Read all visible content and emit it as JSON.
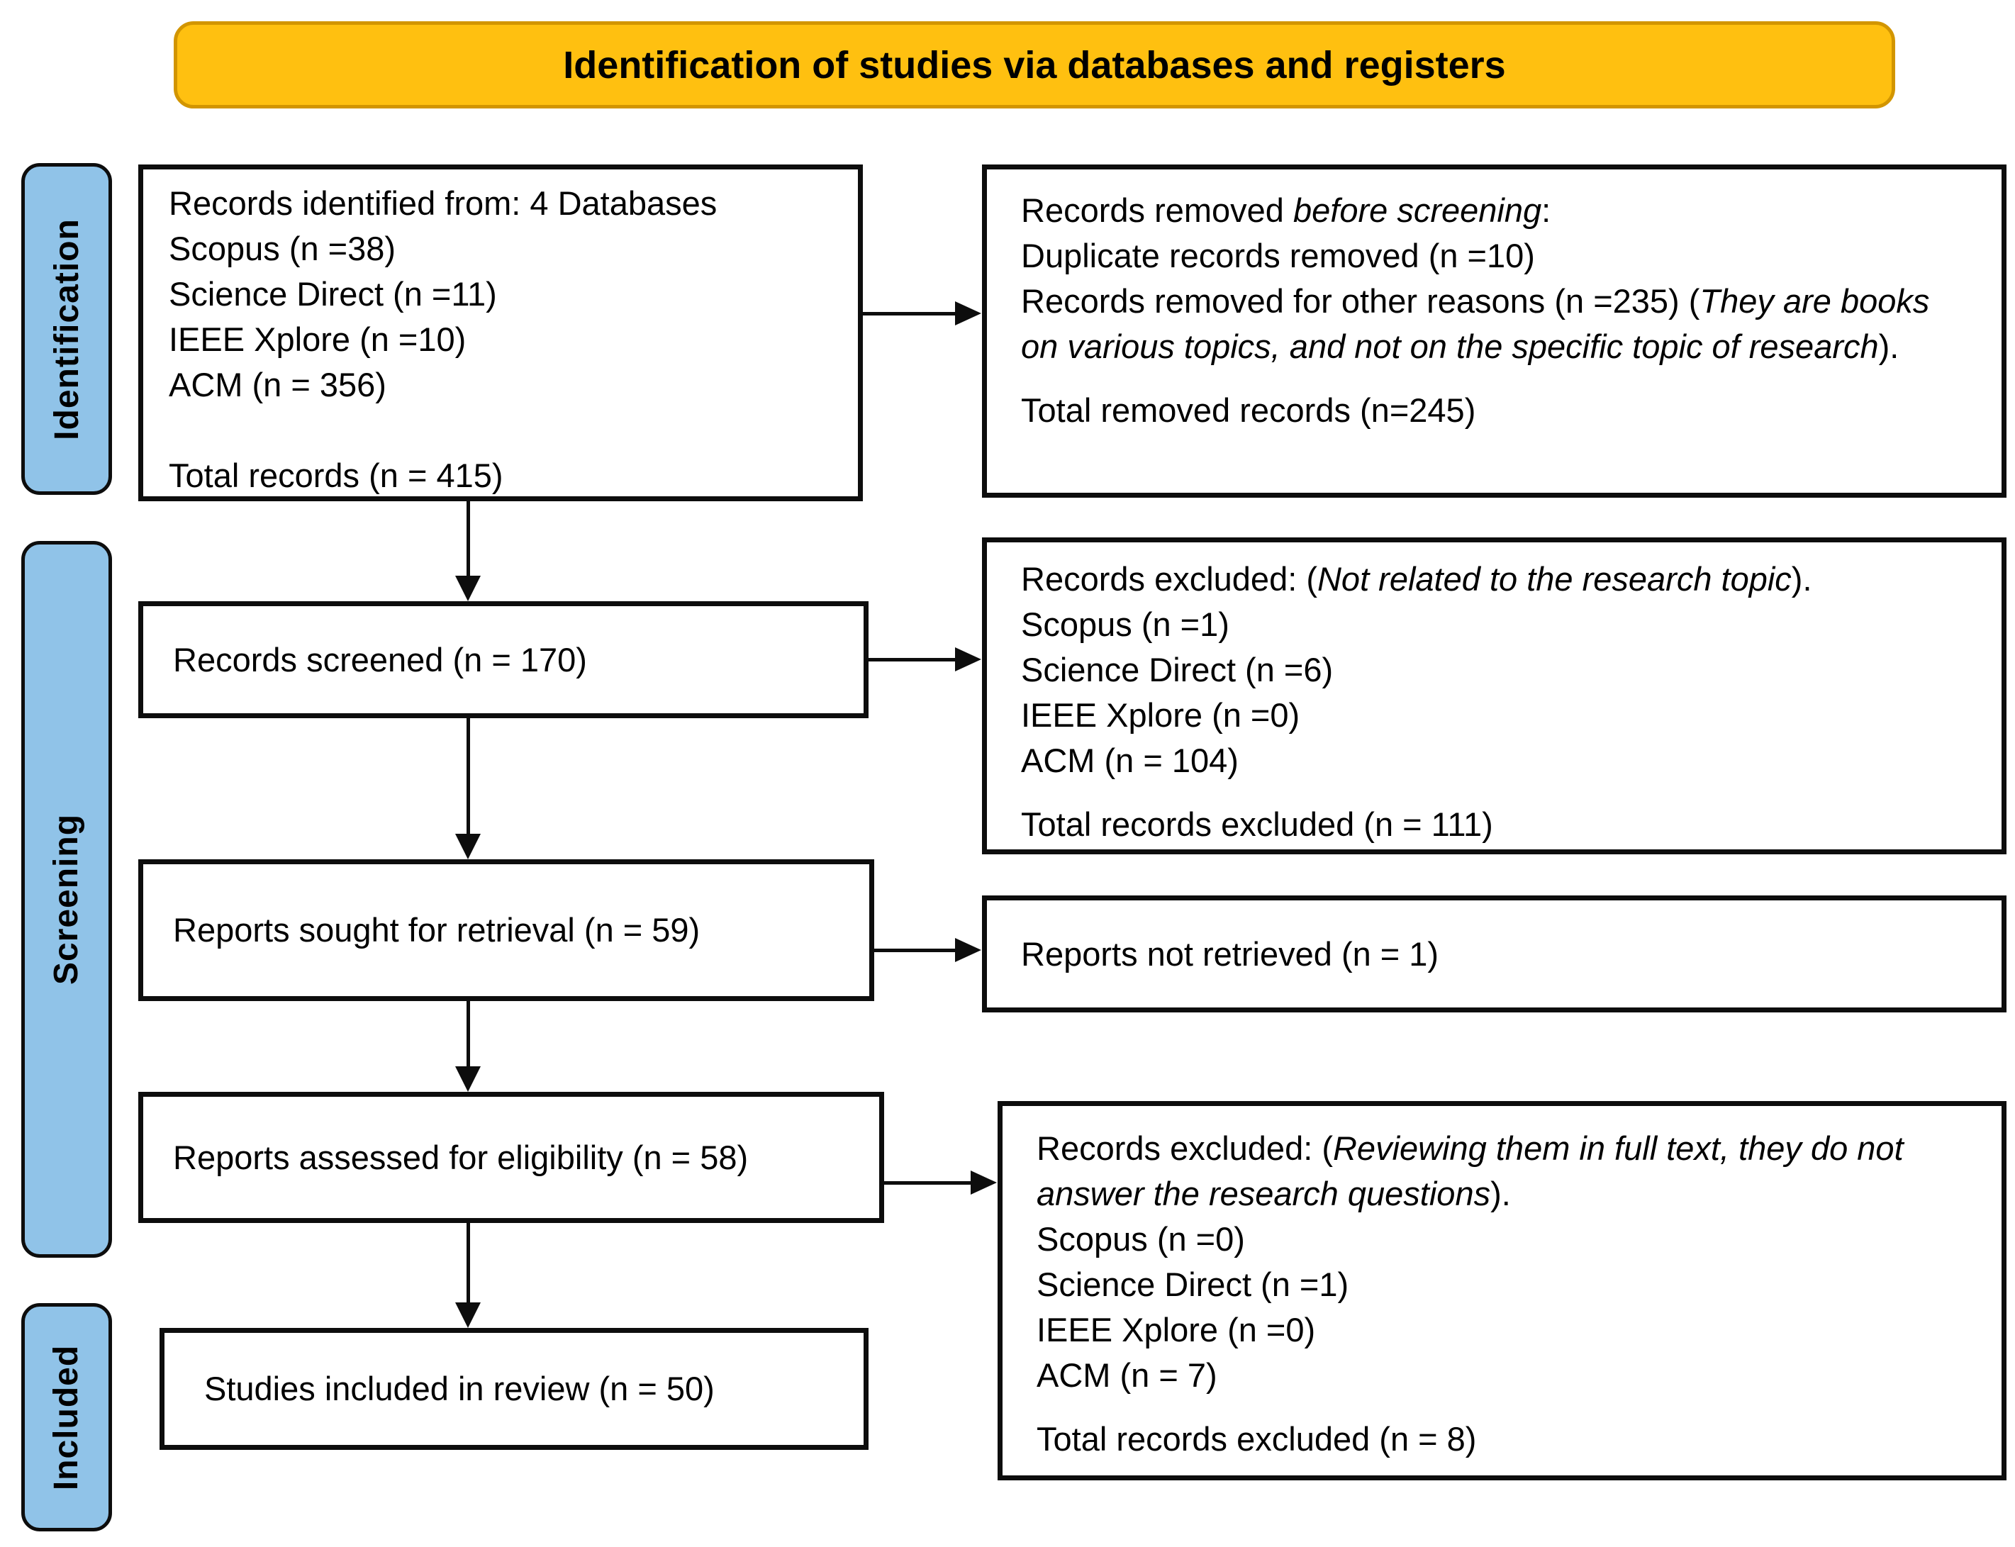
{
  "banner": {
    "label": "Identification of studies via databases and registers"
  },
  "stage_labels": [
    {
      "label": "Identification"
    },
    {
      "label": "Screening"
    },
    {
      "label": "Included"
    }
  ],
  "colors": {
    "banner_fill": "#FFC010",
    "banner_border": "#D29500",
    "stage_fill": "#90C3E8",
    "line": "#0D0D0D",
    "box_fill": "#FFFFFF"
  },
  "boxes": {
    "records_identified": {
      "lines": [
        {
          "runs": [
            {
              "t": "Records identified from: 4 Databases"
            }
          ]
        },
        {
          "runs": [
            {
              "t": "Scopus (n =38)"
            }
          ]
        },
        {
          "runs": [
            {
              "t": "Science Direct (n =11)"
            }
          ]
        },
        {
          "runs": [
            {
              "t": "IEEE Xplore (n =10)"
            }
          ]
        },
        {
          "runs": [
            {
              "t": "ACM (n = 356)"
            }
          ]
        },
        {
          "runs": []
        },
        {
          "runs": [
            {
              "t": "Total records (n = 415)"
            }
          ]
        }
      ]
    },
    "records_removed": {
      "lines": [
        {
          "runs": [
            {
              "t": "Records removed "
            },
            {
              "t": "before screening",
              "i": true
            },
            {
              "t": ":"
            }
          ]
        },
        {
          "runs": [
            {
              "t": "Duplicate records removed (n =10)"
            }
          ]
        },
        {
          "runs": [
            {
              "t": "Records removed for other reasons (n =235) ("
            },
            {
              "t": "They are books on various topics, and not on the specific topic of research",
              "i": true
            },
            {
              "t": ")."
            }
          ]
        },
        {
          "gap": true,
          "runs": [
            {
              "t": "Total removed records (n=245)"
            }
          ]
        }
      ]
    },
    "records_screened": {
      "lines": [
        {
          "runs": [
            {
              "t": "Records screened (n = 170)"
            }
          ]
        }
      ]
    },
    "records_excluded_screening": {
      "lines": [
        {
          "runs": [
            {
              "t": "Records excluded: ("
            },
            {
              "t": "Not related to the research topic",
              "i": true
            },
            {
              "t": ")."
            }
          ]
        },
        {
          "runs": [
            {
              "t": "Scopus (n =1)"
            }
          ]
        },
        {
          "runs": [
            {
              "t": "Science Direct (n =6)"
            }
          ]
        },
        {
          "runs": [
            {
              "t": "IEEE Xplore (n =0)"
            }
          ]
        },
        {
          "runs": [
            {
              "t": "ACM (n = 104)"
            }
          ]
        },
        {
          "gap": true,
          "runs": [
            {
              "t": "Total records excluded (n = 111)"
            }
          ]
        }
      ]
    },
    "reports_sought": {
      "lines": [
        {
          "runs": [
            {
              "t": "Reports sought for retrieval (n = 59)"
            }
          ]
        }
      ]
    },
    "reports_not_retrieved": {
      "lines": [
        {
          "runs": [
            {
              "t": "Reports not retrieved (n = 1)"
            }
          ]
        }
      ]
    },
    "reports_assessed": {
      "lines": [
        {
          "runs": [
            {
              "t": "Reports assessed for eligibility (n = 58)"
            }
          ]
        }
      ]
    },
    "records_excluded_fulltext": {
      "lines": [
        {
          "runs": [
            {
              "t": "Records excluded: ("
            },
            {
              "t": "Reviewing them in full text, they do not answer the research questions",
              "i": true
            },
            {
              "t": ")."
            }
          ]
        },
        {
          "runs": [
            {
              "t": "Scopus (n =0)"
            }
          ]
        },
        {
          "runs": [
            {
              "t": "Science Direct (n =1)"
            }
          ]
        },
        {
          "runs": [
            {
              "t": "IEEE Xplore (n =0)"
            }
          ]
        },
        {
          "runs": [
            {
              "t": "ACM (n = 7)"
            }
          ]
        },
        {
          "gap": true,
          "runs": [
            {
              "t": "Total records excluded (n = 8)"
            }
          ]
        }
      ]
    },
    "studies_included": {
      "lines": [
        {
          "runs": [
            {
              "t": "Studies included in review (n = 50)"
            }
          ]
        }
      ]
    }
  }
}
